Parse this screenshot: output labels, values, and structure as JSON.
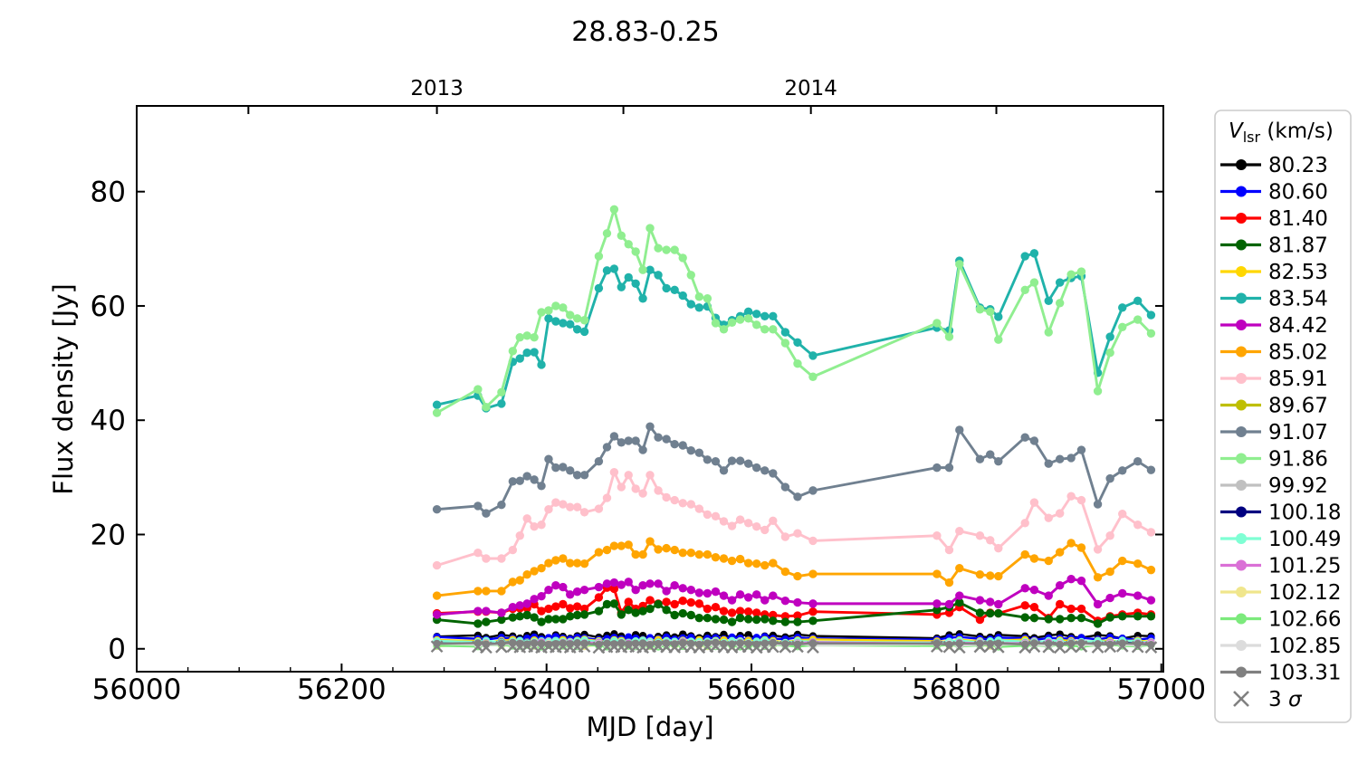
{
  "title": "28.83-0.25",
  "axes": {
    "xlabel": "MJD [day]",
    "ylabel": "Flux density [Jy]",
    "xlim": [
      56000,
      57002
    ],
    "ylim": [
      -4,
      95
    ],
    "x_ticks": [
      56000,
      56200,
      56400,
      56600,
      56800,
      57000
    ],
    "x_minor_start": 56050,
    "x_minor_step": 50,
    "y_ticks": [
      0,
      20,
      40,
      60,
      80
    ],
    "top_axis": {
      "ticks": [
        56109,
        56293,
        56475,
        56658,
        56839
      ],
      "labels": [
        "",
        "2013",
        "",
        "2014",
        ""
      ]
    }
  },
  "legend": {
    "title_symbol": "V",
    "title_subscript": "lsr",
    "title_units": " (km/s)",
    "sigma_prefix": "3 ",
    "sigma_symbol": "σ"
  },
  "chart_data": {
    "type": "line",
    "title": "28.83-0.25",
    "xlabel": "MJD [day]",
    "ylabel": "Flux density [Jy]",
    "x": [
      56293,
      56333,
      56341,
      56356,
      56367,
      56374,
      56381,
      56388,
      56395,
      56402,
      56409,
      56416,
      56423,
      56430,
      56437,
      56451,
      56459,
      56466,
      56473,
      56480,
      56487,
      56494,
      56501,
      56509,
      56517,
      56525,
      56533,
      56541,
      56549,
      56557,
      56565,
      56573,
      56581,
      56589,
      56597,
      56605,
      56613,
      56621,
      56633,
      56645,
      56660,
      56781,
      56793,
      56803,
      56823,
      56833,
      56841,
      56867,
      56876,
      56890,
      56901,
      56912,
      56922,
      56938,
      56950,
      56962,
      56977,
      56990
    ],
    "wiggle": [
      0.1,
      0.5,
      -0.3,
      0.7,
      0.2,
      -0.5,
      0.4,
      0.9,
      0.0,
      -0.4,
      0.6,
      0.1,
      -0.6,
      0.3,
      0.8,
      -0.2,
      0.5,
      1.0,
      0.2,
      -0.3,
      0.7,
      0.4,
      -0.5,
      0.1,
      0.6,
      -0.1,
      0.9,
      0.3,
      -0.4,
      0.5,
      0.0,
      0.8,
      -0.3,
      0.4,
      0.7,
      -0.6,
      0.2,
      0.5,
      -0.1,
      0.8,
      0.3,
      -0.5,
      0.6,
      1.0,
      0.1,
      -0.2,
      0.7,
      0.2,
      -0.4,
      0.5,
      0.9,
      0.0,
      -0.3,
      0.6,
      0.3,
      -0.6,
      0.4,
      0.2
    ],
    "series": [
      {
        "label": "80.23",
        "color": "#000000",
        "kind": "flat",
        "base": 2.1,
        "amp": 0.5,
        "phase": 0
      },
      {
        "label": "80.60",
        "color": "#0000FF",
        "kind": "flat",
        "base": 1.75,
        "amp": 0.35,
        "phase": 7
      },
      {
        "label": "81.40",
        "color": "#FF0000",
        "kind": "curve",
        "values": [
          6.2,
          6.5,
          6.5,
          6.3,
          7.0,
          7.1,
          7.1,
          7.8,
          6.6,
          7.0,
          7.4,
          7.8,
          7.1,
          7.4,
          7.0,
          9.0,
          10.7,
          10.5,
          6.3,
          8.2,
          7.0,
          7.5,
          8.5,
          7.9,
          8.2,
          7.8,
          8.4,
          8.1,
          7.9,
          7.0,
          7.3,
          6.6,
          6.3,
          6.6,
          6.5,
          6.3,
          6.0,
          5.9,
          5.7,
          5.8,
          6.5,
          6.0,
          6.3,
          7.3,
          5.1,
          6.3,
          6.2,
          7.6,
          7.3,
          5.4,
          7.8,
          7.0,
          7.0,
          4.9,
          5.7,
          6.0,
          6.3,
          6.0
        ]
      },
      {
        "label": "81.87",
        "color": "#006400",
        "kind": "curve",
        "values": [
          5.1,
          4.4,
          4.7,
          5.1,
          5.5,
          5.7,
          5.9,
          5.5,
          4.7,
          5.2,
          5.2,
          5.2,
          5.7,
          5.9,
          6.0,
          6.6,
          7.8,
          7.9,
          6.0,
          6.8,
          6.3,
          6.6,
          7.0,
          7.8,
          6.8,
          5.9,
          6.2,
          5.9,
          5.4,
          5.4,
          5.2,
          5.1,
          4.7,
          5.4,
          5.2,
          5.1,
          5.2,
          4.9,
          4.7,
          4.7,
          4.9,
          6.8,
          7.3,
          8.1,
          6.3,
          6.2,
          6.2,
          5.5,
          5.4,
          5.2,
          5.2,
          5.4,
          5.4,
          4.4,
          5.5,
          5.7,
          5.7,
          5.7
        ]
      },
      {
        "label": "82.53",
        "color": "#FFD700",
        "kind": "flat",
        "base": 1.3,
        "amp": 0.35,
        "phase": 3
      },
      {
        "label": "83.54",
        "color": "#20B2AA",
        "kind": "curve",
        "values": [
          42.7,
          44.3,
          42.1,
          42.9,
          50.2,
          50.8,
          51.8,
          51.9,
          49.7,
          57.8,
          57.3,
          57.0,
          56.8,
          55.9,
          55.5,
          63.1,
          66.2,
          66.5,
          63.3,
          65.0,
          63.9,
          61.3,
          66.3,
          65.4,
          63.1,
          62.8,
          61.8,
          60.3,
          59.7,
          59.9,
          57.9,
          56.7,
          57.5,
          58.2,
          59.0,
          58.6,
          58.2,
          58.2,
          55.4,
          53.6,
          51.3,
          56.2,
          55.7,
          67.9,
          59.7,
          59.4,
          58.1,
          68.7,
          69.2,
          60.9,
          64.1,
          64.9,
          65.2,
          48.3,
          54.6,
          59.7,
          60.9,
          58.4
        ]
      },
      {
        "label": "84.42",
        "color": "#BF00BF",
        "kind": "curve",
        "values": [
          6.0,
          6.6,
          6.6,
          6.3,
          7.3,
          7.6,
          7.9,
          8.7,
          9.2,
          10.3,
          11.1,
          10.8,
          9.5,
          10.0,
          10.3,
          10.8,
          11.4,
          11.6,
          11.2,
          11.7,
          10.3,
          11.1,
          11.4,
          11.4,
          10.1,
          11.1,
          10.6,
          10.3,
          9.8,
          9.7,
          10.0,
          9.3,
          8.5,
          9.5,
          9.0,
          9.5,
          8.5,
          9.3,
          8.4,
          8.1,
          7.9,
          7.9,
          7.8,
          9.3,
          8.5,
          8.2,
          7.8,
          10.6,
          10.3,
          9.3,
          11.1,
          12.2,
          11.9,
          7.8,
          8.9,
          9.7,
          9.3,
          8.5
        ]
      },
      {
        "label": "85.02",
        "color": "#FFA500",
        "kind": "curve",
        "values": [
          9.3,
          10.1,
          10.1,
          10.1,
          11.7,
          12.0,
          13.0,
          13.6,
          14.1,
          15.0,
          15.5,
          15.8,
          15.0,
          15.0,
          14.9,
          16.9,
          17.3,
          18.0,
          18.0,
          18.2,
          16.5,
          16.5,
          18.8,
          17.4,
          17.6,
          17.3,
          16.8,
          16.8,
          16.5,
          16.5,
          16.0,
          15.8,
          15.4,
          15.7,
          15.0,
          14.9,
          14.6,
          15.0,
          13.5,
          12.7,
          13.1,
          13.1,
          11.6,
          14.1,
          13.0,
          12.8,
          12.7,
          16.5,
          15.8,
          15.4,
          16.9,
          18.5,
          17.7,
          12.5,
          13.5,
          15.4,
          14.9,
          13.8
        ]
      },
      {
        "label": "85.91",
        "color": "#FFC0CB",
        "kind": "curve",
        "values": [
          14.6,
          16.8,
          15.8,
          15.8,
          17.3,
          19.8,
          22.8,
          21.4,
          21.7,
          24.4,
          25.6,
          25.3,
          24.8,
          24.8,
          23.9,
          24.5,
          26.4,
          30.9,
          28.3,
          30.4,
          28.0,
          27.2,
          30.4,
          27.7,
          26.5,
          26.0,
          25.5,
          25.3,
          24.5,
          23.5,
          23.2,
          22.3,
          21.5,
          22.6,
          22.0,
          21.4,
          20.8,
          22.4,
          19.6,
          20.2,
          18.9,
          19.8,
          17.3,
          20.6,
          19.8,
          19.0,
          17.6,
          22.0,
          25.6,
          22.9,
          23.7,
          26.7,
          26.0,
          17.4,
          19.8,
          23.6,
          21.7,
          20.4
        ]
      },
      {
        "label": "89.67",
        "color": "#BFBF00",
        "kind": "flat",
        "base": 0.8,
        "amp": 0.3,
        "phase": 11
      },
      {
        "label": "91.07",
        "color": "#708090",
        "kind": "curve",
        "values": [
          24.4,
          25.0,
          23.7,
          25.2,
          29.3,
          29.4,
          30.2,
          29.6,
          28.5,
          33.2,
          31.7,
          31.8,
          31.2,
          30.4,
          30.4,
          32.8,
          35.3,
          37.2,
          36.1,
          36.4,
          36.4,
          34.8,
          38.9,
          37.0,
          36.7,
          35.8,
          35.6,
          34.7,
          34.3,
          33.1,
          32.8,
          31.2,
          32.9,
          32.9,
          32.4,
          31.7,
          31.2,
          30.7,
          28.3,
          26.6,
          27.7,
          31.7,
          31.7,
          38.3,
          33.2,
          34.0,
          32.8,
          37.0,
          36.4,
          32.4,
          33.2,
          33.4,
          34.8,
          25.3,
          29.8,
          31.2,
          32.8,
          31.3
        ]
      },
      {
        "label": "91.86",
        "color": "#90EE90",
        "kind": "curve",
        "values": [
          41.3,
          45.4,
          42.3,
          44.9,
          52.1,
          54.5,
          54.8,
          54.5,
          58.9,
          59.2,
          60.0,
          59.7,
          58.4,
          57.8,
          57.5,
          68.7,
          72.7,
          76.9,
          72.3,
          70.8,
          69.5,
          66.3,
          73.6,
          70.1,
          69.8,
          69.8,
          68.4,
          65.4,
          61.6,
          61.3,
          57.0,
          55.9,
          57.1,
          57.6,
          57.8,
          56.7,
          55.9,
          55.9,
          53.5,
          49.9,
          47.6,
          57.0,
          54.6,
          67.3,
          59.4,
          59.0,
          54.1,
          62.8,
          64.1,
          55.4,
          60.5,
          65.5,
          66.0,
          45.1,
          51.8,
          56.3,
          57.6,
          55.2
        ]
      },
      {
        "label": "99.92",
        "color": "#C0C0C0",
        "kind": "flat",
        "base": 1.1,
        "amp": 0.3,
        "phase": 17
      },
      {
        "label": "100.18",
        "color": "#000080",
        "kind": "flat",
        "base": 0.95,
        "amp": 0.25,
        "phase": 23
      },
      {
        "label": "100.49",
        "color": "#7FFFD4",
        "kind": "flat",
        "base": 1.2,
        "amp": 0.3,
        "phase": 29
      },
      {
        "label": "101.25",
        "color": "#DA70D6",
        "kind": "flat",
        "base": 0.85,
        "amp": 0.3,
        "phase": 35
      },
      {
        "label": "102.12",
        "color": "#F0E68C",
        "kind": "flat",
        "base": 0.6,
        "amp": 0.3,
        "phase": 41
      },
      {
        "label": "102.66",
        "color": "#7CEA7C",
        "kind": "flat",
        "base": 0.5,
        "amp": 0.25,
        "phase": 47
      },
      {
        "label": "102.85",
        "color": "#DCDCDC",
        "kind": "flat",
        "base": 0.7,
        "amp": 0.25,
        "phase": 50
      },
      {
        "label": "103.31",
        "color": "#808080",
        "kind": "flat",
        "base": 0.85,
        "amp": 0.2,
        "phase": 13
      },
      {
        "label": "3 σ",
        "color": "#808080",
        "kind": "sigma",
        "base": 0.3,
        "amp": 0.15,
        "phase": 20
      }
    ]
  }
}
